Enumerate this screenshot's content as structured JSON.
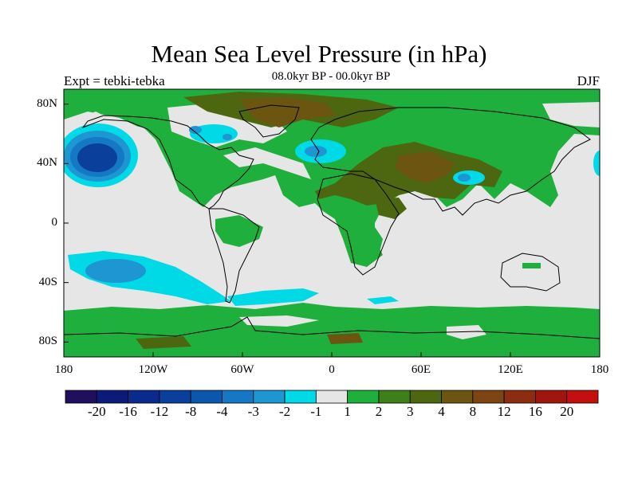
{
  "title": "Mean Sea Level Pressure (in hPa)",
  "subtitle": "08.0kyr BP - 00.0kyr BP",
  "left_label": "Expt = tebki-tebka",
  "right_label": "DJF",
  "axes": {
    "lat_ticks": [
      "80N",
      "40N",
      "0",
      "40S",
      "80S"
    ],
    "lon_ticks": [
      "180",
      "120W",
      "60W",
      "0",
      "60E",
      "120E",
      "180"
    ]
  },
  "colorbar": {
    "colors": [
      "#1f0f5c",
      "#0c1a78",
      "#0a2a8c",
      "#0a3f9c",
      "#0b57ad",
      "#1478c4",
      "#1d96d2",
      "#00d9e6",
      "#e6e6e6",
      "#1faf3c",
      "#3e7f17",
      "#4d6610",
      "#6b5511",
      "#7d4511",
      "#8c2d0f",
      "#a0160c",
      "#c40f0f"
    ],
    "labels": [
      "-20",
      "-16",
      "-12",
      "-8",
      "-4",
      "-3",
      "-2",
      "-1",
      "1",
      "2",
      "3",
      "4",
      "8",
      "12",
      "16",
      "20"
    ]
  },
  "colors": {
    "neutral": "#e6e6e6",
    "green": "#1faf3c",
    "olive": "#4d6610",
    "brown": "#6b5511",
    "cyan": "#00d9e6",
    "light_blue": "#1d96d2",
    "mid_blue": "#1478c4",
    "dark_blue": "#0a3f9c"
  }
}
